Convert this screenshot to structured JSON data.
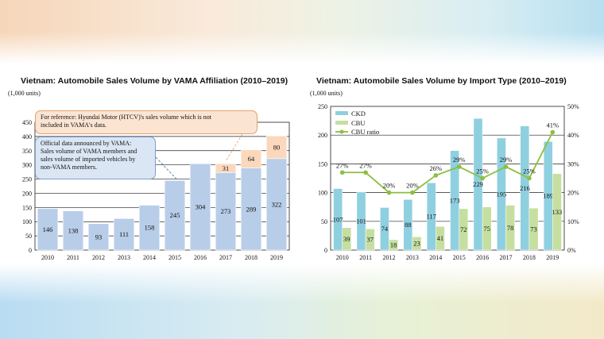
{
  "chart_data": [
    {
      "type": "bar",
      "stacked": true,
      "title": "Vietnam: Automobile Sales Volume by VAMA Affiliation (2010–2019)",
      "unit_label": "(1,000 units)",
      "categories": [
        "2010",
        "2011",
        "2012",
        "2013",
        "2014",
        "2015",
        "2016",
        "2017",
        "2018",
        "2019"
      ],
      "ylim": [
        0,
        450
      ],
      "yticks": [
        0,
        50,
        100,
        150,
        200,
        250,
        300,
        350,
        400,
        450
      ],
      "grid": true,
      "series": [
        {
          "values": [
            146,
            138,
            93,
            111,
            158,
            245,
            304,
            273,
            289,
            322
          ],
          "color": "#b8cde8"
        },
        {
          "values": [
            null,
            null,
            null,
            null,
            null,
            null,
            null,
            31,
            64,
            80
          ],
          "color": "#fbd8bc"
        }
      ],
      "annotations": [
        {
          "lines": [
            "For reference: Hyundai Motor (HTCV)'s sales volume which is not",
            "included in VAMA's data."
          ]
        },
        {
          "lines": [
            "Official data announced by VAMA:",
            "Sales volume of VAMA members and",
            "sales volume of imported vehicles by",
            "non-VAMA members."
          ]
        }
      ]
    },
    {
      "type": "bar+line",
      "title": "Vietnam: Automobile Sales Volume by Import Type (2010–2019)",
      "unit_label": "(1,000 units)",
      "categories": [
        "2010",
        "2011",
        "2012",
        "2013",
        "2014",
        "2015",
        "2016",
        "2017",
        "2018",
        "2019"
      ],
      "ylim": [
        0,
        250
      ],
      "yticks": [
        0,
        50,
        100,
        150,
        200,
        250
      ],
      "y2lim": [
        0,
        50
      ],
      "y2ticks": [
        "0%",
        "10%",
        "20%",
        "30%",
        "40%",
        "50%"
      ],
      "grid": true,
      "legend": "top-left",
      "series": [
        {
          "name": "CKD",
          "type": "bar",
          "values": [
            107,
            101,
            74,
            88,
            117,
            173,
            229,
            195,
            216,
            189
          ],
          "color": "#8fd0e0"
        },
        {
          "name": "CBU",
          "type": "bar",
          "values": [
            39,
            37,
            18,
            23,
            41,
            72,
            75,
            78,
            73,
            133
          ],
          "color": "#c6dfa0"
        },
        {
          "name": "CBU ratio",
          "type": "line",
          "axis": "right",
          "values": [
            27,
            27,
            20,
            20,
            26,
            29,
            25,
            29,
            25,
            41
          ],
          "labels": [
            "27%",
            "27%",
            "20%",
            "20%",
            "26%",
            "29%",
            "25%",
            "29%",
            "25%",
            "41%"
          ],
          "color": "#8cbf3f"
        }
      ]
    }
  ]
}
